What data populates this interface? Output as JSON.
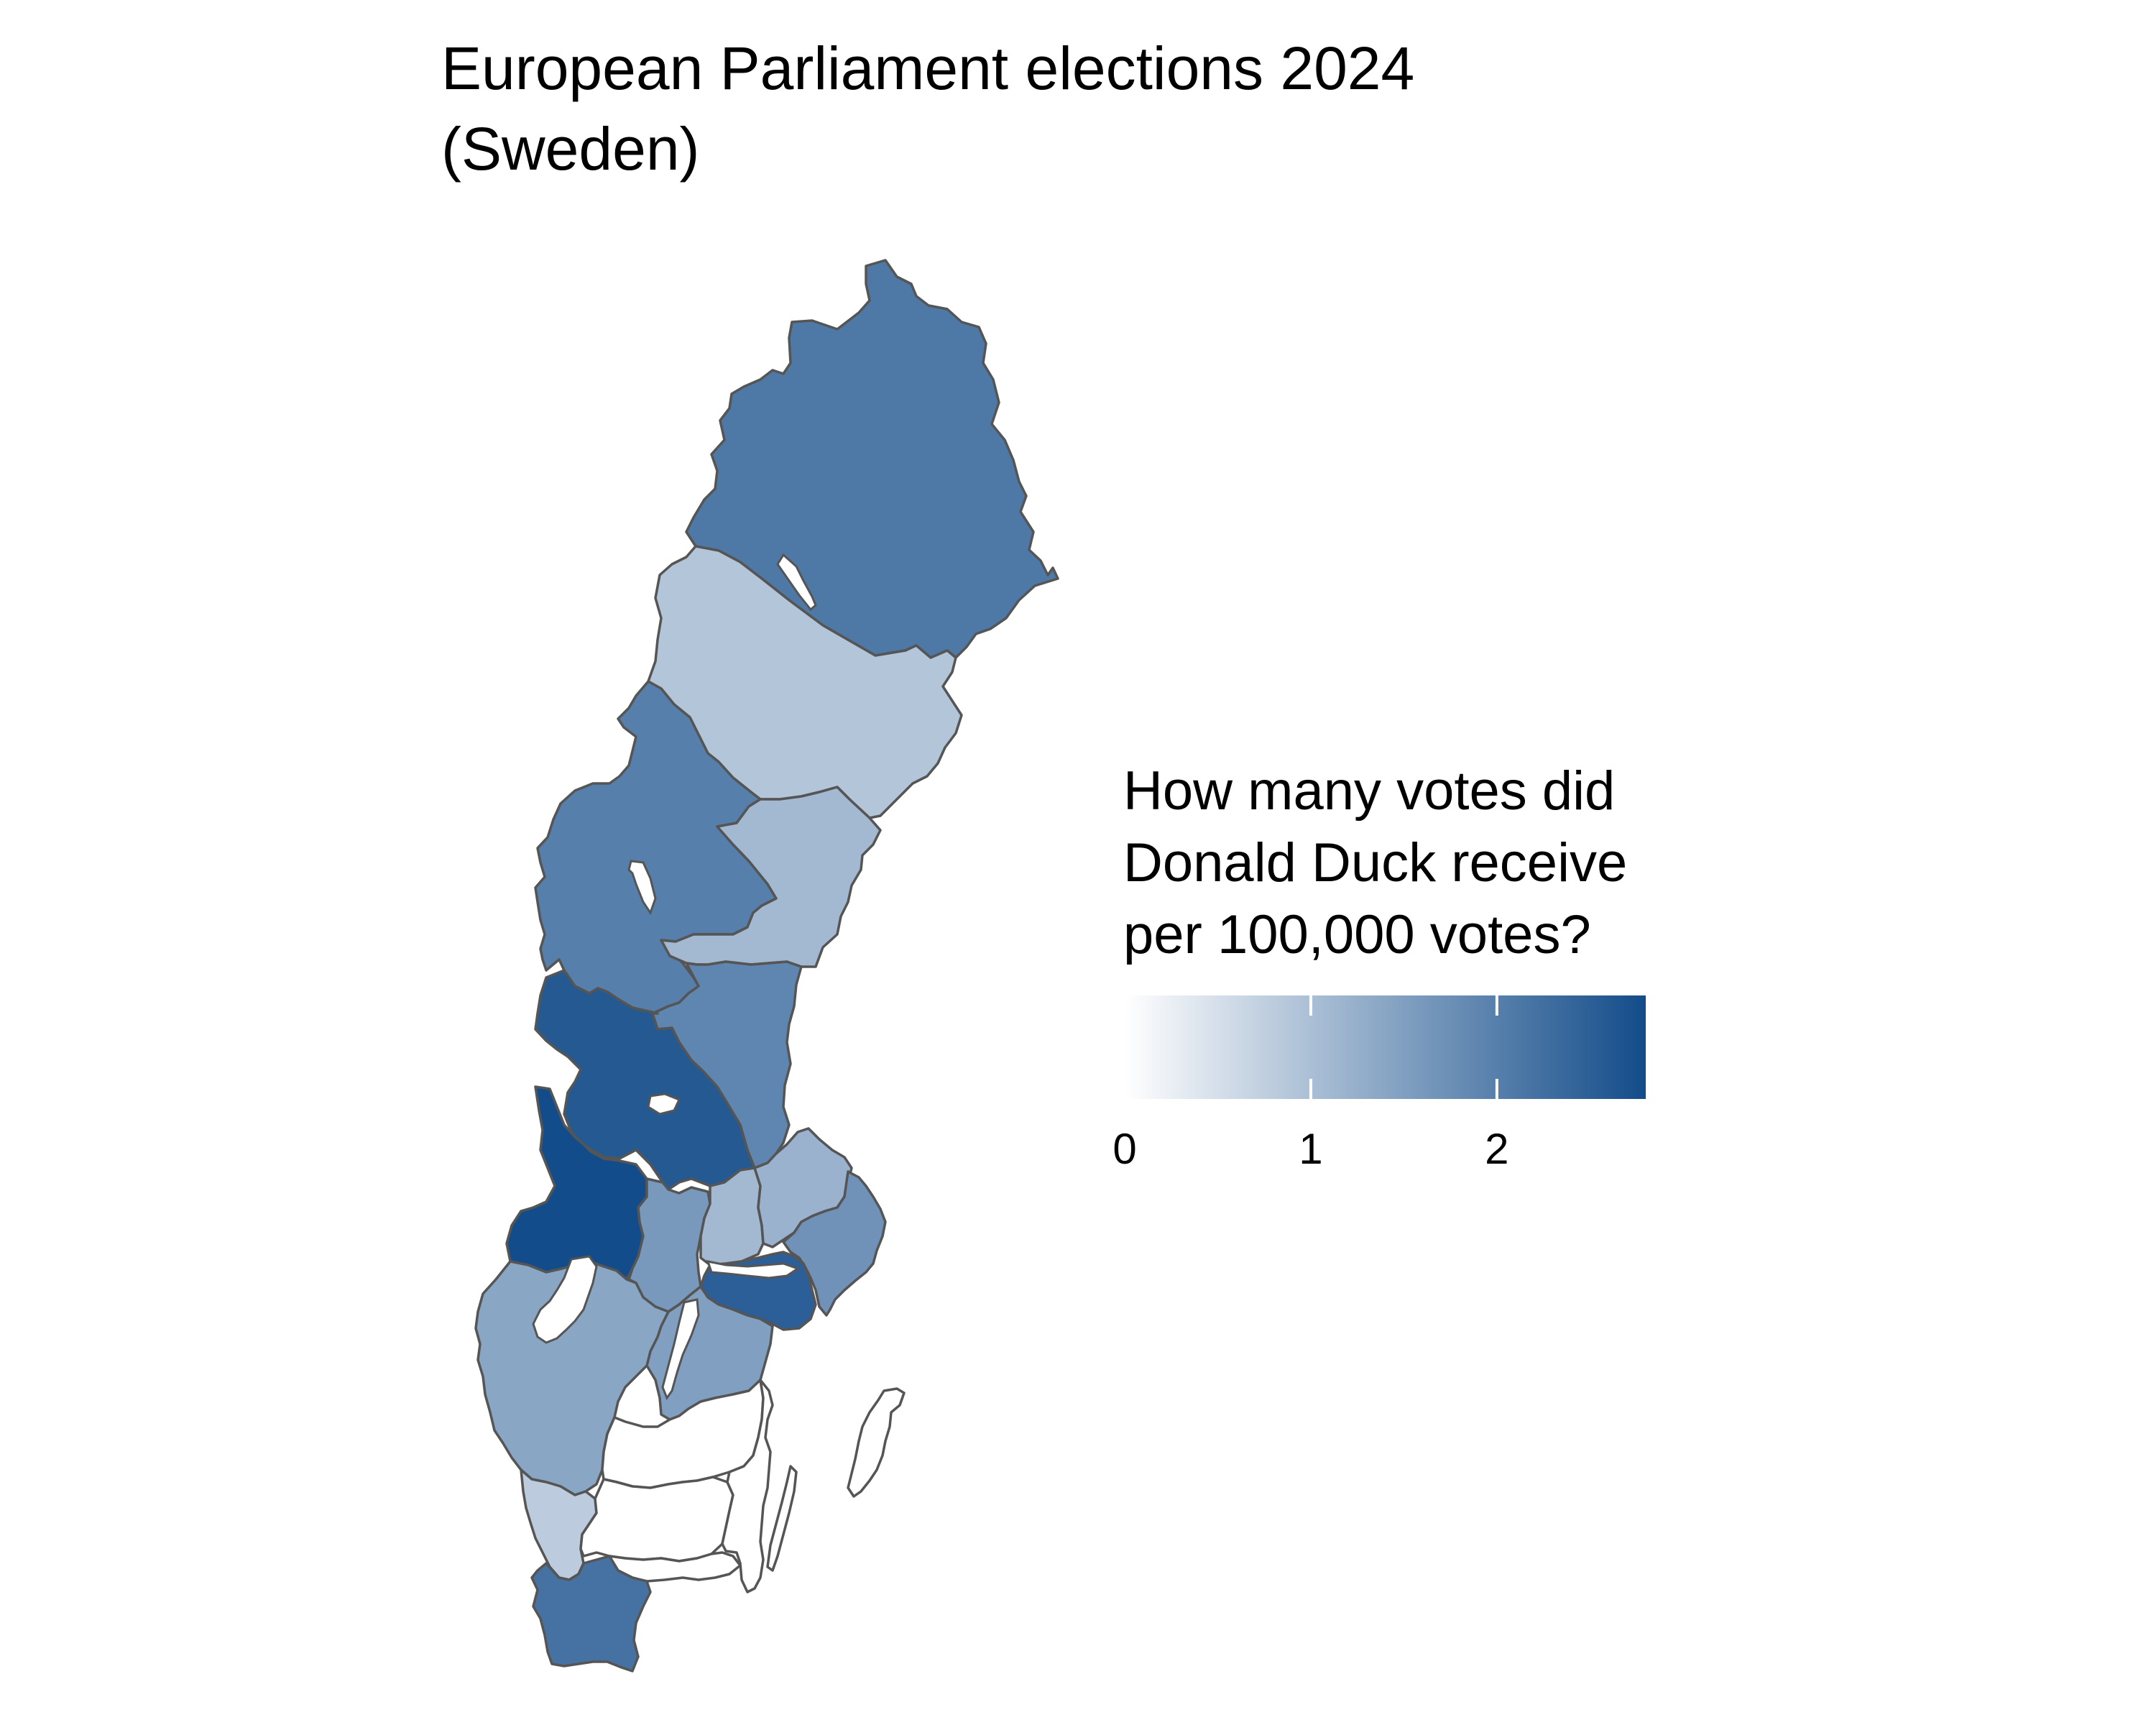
{
  "title": {
    "line1": "European Parliament elections 2024",
    "line2": "(Sweden)"
  },
  "legend": {
    "title_lines": [
      "How many votes did",
      "Donald Duck receive",
      "per 100,000 votes?"
    ],
    "min": 0,
    "max": 2.8,
    "ticks": [
      0,
      1,
      2
    ],
    "tick_labels": [
      "0",
      "1",
      "2"
    ],
    "low_color": "#ffffff",
    "high_color": "#134c8a"
  },
  "chart_data": {
    "type": "choropleth",
    "title": "European Parliament elections 2024 (Sweden)",
    "legend_title": "How many votes did Donald Duck receive per 100,000 votes?",
    "scale": {
      "min": 0,
      "max": 2.8,
      "low_color": "#ffffff",
      "high_color": "#134c8a"
    },
    "regions": [
      {
        "id": "norrbotten",
        "value": 2.1
      },
      {
        "id": "vasterbotten",
        "value": 0.9
      },
      {
        "id": "jamtland",
        "value": 2.0
      },
      {
        "id": "vasternorrland",
        "value": 1.1
      },
      {
        "id": "gavleborg",
        "value": 1.9
      },
      {
        "id": "dalarna",
        "value": 2.6
      },
      {
        "id": "varmland",
        "value": 2.8
      },
      {
        "id": "orebro",
        "value": 1.6
      },
      {
        "id": "vastmanland",
        "value": 1.1
      },
      {
        "id": "uppsala",
        "value": 1.2
      },
      {
        "id": "stockholm",
        "value": 1.7
      },
      {
        "id": "sodermanland",
        "value": 2.5
      },
      {
        "id": "ostergotland",
        "value": 1.5
      },
      {
        "id": "vastra-gotaland",
        "value": 1.4
      },
      {
        "id": "jonkoping",
        "value": 0.0
      },
      {
        "id": "kronoberg",
        "value": 0.0
      },
      {
        "id": "kalmar",
        "value": 0.0
      },
      {
        "id": "gotland",
        "value": 0.0
      },
      {
        "id": "halland",
        "value": 0.8
      },
      {
        "id": "blekinge",
        "value": 0.0
      },
      {
        "id": "skane",
        "value": 2.2
      }
    ]
  }
}
